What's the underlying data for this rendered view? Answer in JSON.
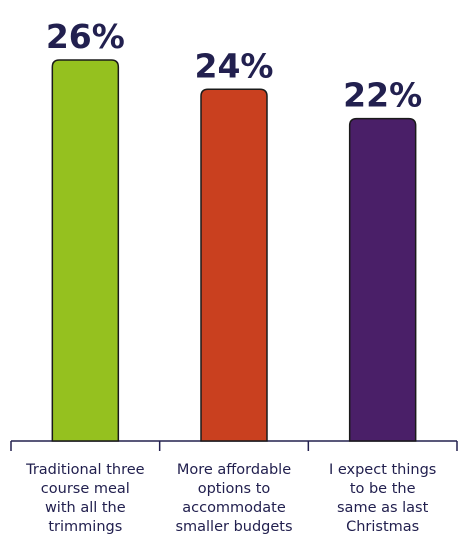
{
  "chart_data": {
    "type": "bar",
    "categories": [
      "Traditional three course meal with all the trimmings",
      "More affordable options to accommodate smaller budgets",
      "I expect things to be the same as last Christmas"
    ],
    "category_lines": [
      [
        "Traditional three",
        "course meal",
        "with all the",
        "trimmings"
      ],
      [
        "More affordable",
        "options to",
        "accommodate",
        "smaller budgets"
      ],
      [
        "I expect things",
        "to be the",
        "same as last",
        "Christmas"
      ]
    ],
    "values": [
      26,
      24,
      22
    ],
    "value_labels": [
      "26%",
      "24%",
      "22%"
    ],
    "colors": [
      "#95c11f",
      "#c9401f",
      "#4a1f68"
    ],
    "axis_color": "#22204f",
    "title": "",
    "xlabel": "",
    "ylabel": "",
    "ylim": [
      0,
      26
    ]
  }
}
